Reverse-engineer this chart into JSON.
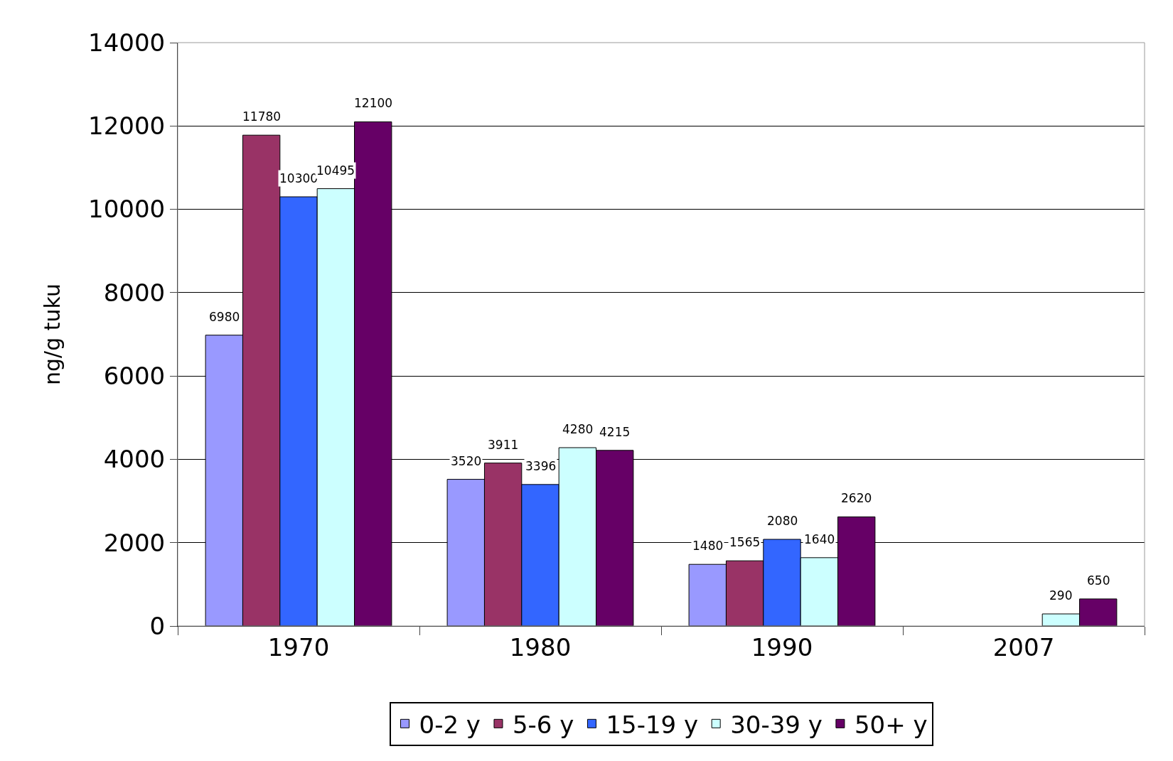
{
  "chart_data": {
    "type": "bar",
    "ylabel": "ng/g tuku",
    "categories": [
      "1970",
      "1980",
      "1990",
      "2007"
    ],
    "series": [
      {
        "name": "0-2 y",
        "color": "#9999ff",
        "values": [
          6980,
          3520,
          1480,
          null
        ]
      },
      {
        "name": "5-6 y",
        "color": "#993366",
        "values": [
          11780,
          3911,
          1565,
          null
        ]
      },
      {
        "name": "15-19 y",
        "color": "#3366ff",
        "values": [
          10300,
          3396,
          2080,
          null
        ]
      },
      {
        "name": "30-39 y",
        "color": "#ccffff",
        "values": [
          10495,
          4280,
          1640,
          290
        ]
      },
      {
        "name": "50+ y",
        "color": "#660066",
        "values": [
          12100,
          4215,
          2620,
          650
        ]
      }
    ],
    "ylim": [
      0,
      14000
    ],
    "yticks": [
      0,
      2000,
      4000,
      6000,
      8000,
      10000,
      12000,
      14000
    ],
    "grid": "y",
    "legend": "bottom",
    "data_labels": true
  }
}
